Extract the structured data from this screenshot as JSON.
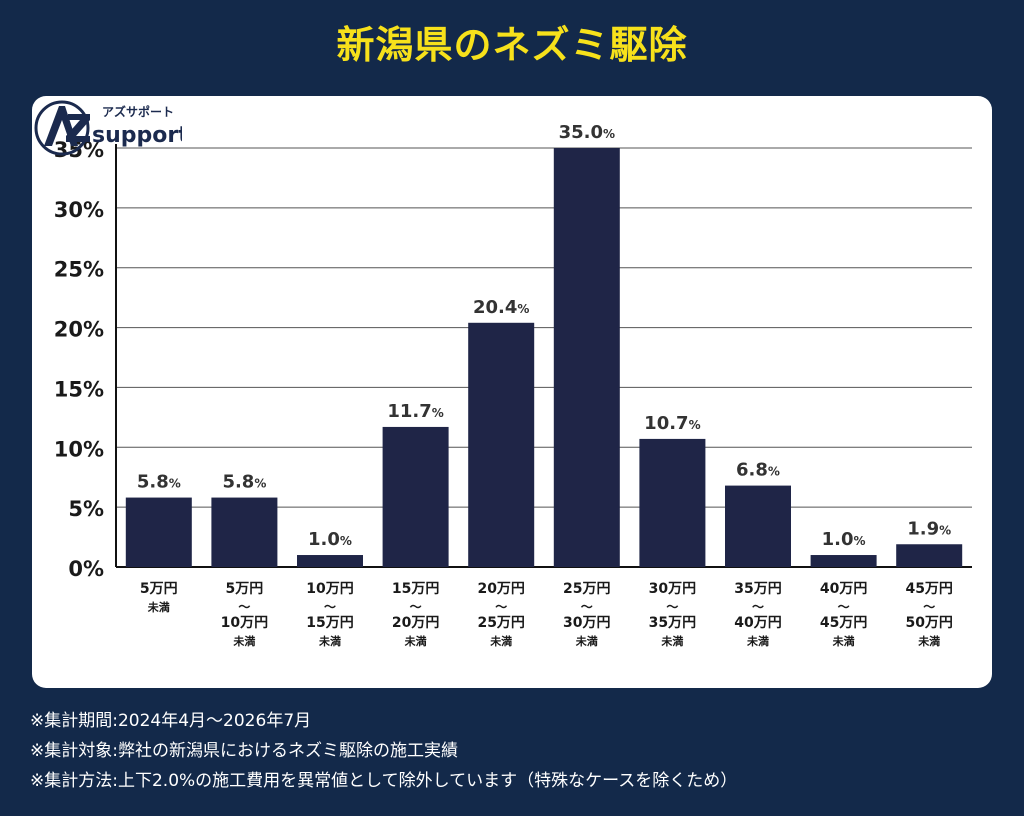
{
  "title": "新潟県のネズミ駆除",
  "logo": {
    "kana": "アズサポート",
    "word": "support"
  },
  "chart_data": {
    "type": "bar",
    "categories": [
      [
        "5万円",
        "未満"
      ],
      [
        "5万円",
        "～",
        "10万円",
        "未満"
      ],
      [
        "10万円",
        "～",
        "15万円",
        "未満"
      ],
      [
        "15万円",
        "～",
        "20万円",
        "未満"
      ],
      [
        "20万円",
        "～",
        "25万円",
        "未満"
      ],
      [
        "25万円",
        "～",
        "30万円",
        "未満"
      ],
      [
        "30万円",
        "～",
        "35万円",
        "未満"
      ],
      [
        "35万円",
        "～",
        "40万円",
        "未満"
      ],
      [
        "40万円",
        "～",
        "45万円",
        "未満"
      ],
      [
        "45万円",
        "～",
        "50万円",
        "未満"
      ]
    ],
    "values": [
      5.8,
      5.8,
      1.0,
      11.7,
      20.4,
      35.0,
      10.7,
      6.8,
      1.0,
      1.9
    ],
    "value_labels": [
      "5.8",
      "5.8",
      "1.0",
      "11.7",
      "20.4",
      "35.0",
      "10.7",
      "6.8",
      "1.0",
      "1.9"
    ],
    "value_unit": "%",
    "y_ticks": [
      "0%",
      "5%",
      "10%",
      "15%",
      "20%",
      "25%",
      "30%",
      "35%"
    ],
    "ylim": [
      0,
      35
    ],
    "grid": true,
    "bar_color": "#1f2547"
  },
  "notes": [
    "※集計期間:2024年4月～2026年7月",
    "※集計対象:弊社の新潟県におけるネズミ駆除の施工実績",
    "※集計方法:上下2.0%の施工費用を異常値として除外しています（特殊なケースを除くため）"
  ]
}
